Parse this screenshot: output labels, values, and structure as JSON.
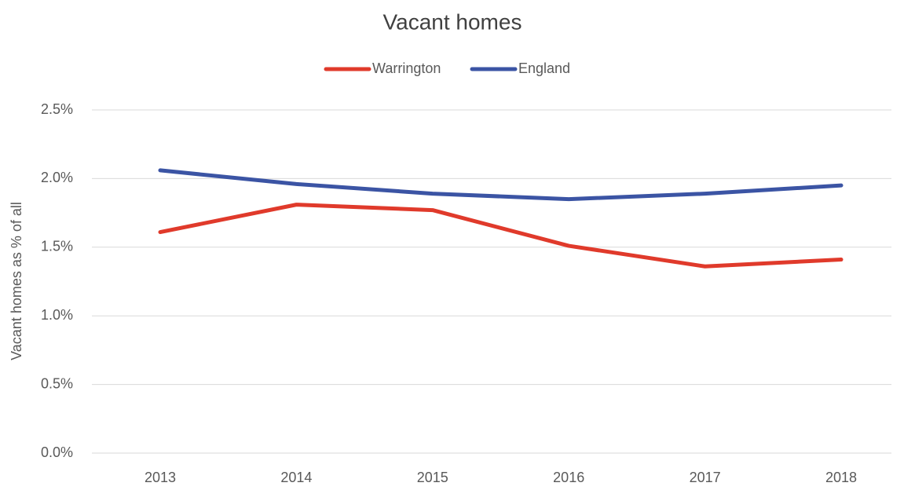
{
  "chart_data": {
    "type": "line",
    "title": "Vacant homes",
    "ylabel": "Vacant homes as % of all",
    "categories": [
      "2013",
      "2014",
      "2015",
      "2016",
      "2017",
      "2018"
    ],
    "series": [
      {
        "name": "Warrington",
        "color": "#e03a2b",
        "values": [
          1.61,
          1.81,
          1.77,
          1.51,
          1.36,
          1.41
        ]
      },
      {
        "name": "England",
        "color": "#3b54a4",
        "values": [
          2.06,
          1.96,
          1.89,
          1.85,
          1.89,
          1.95
        ]
      }
    ],
    "ylim": [
      0,
      2.5
    ],
    "yticks": [
      {
        "value": 0,
        "label": "0.0%"
      },
      {
        "value": 0.5,
        "label": "0.5%"
      },
      {
        "value": 1,
        "label": "1.0%"
      },
      {
        "value": 1.5,
        "label": "1.5%"
      },
      {
        "value": 2,
        "label": "2.0%"
      },
      {
        "value": 2.5,
        "label": "2.5%"
      }
    ],
    "grid": true,
    "legend": "top"
  }
}
